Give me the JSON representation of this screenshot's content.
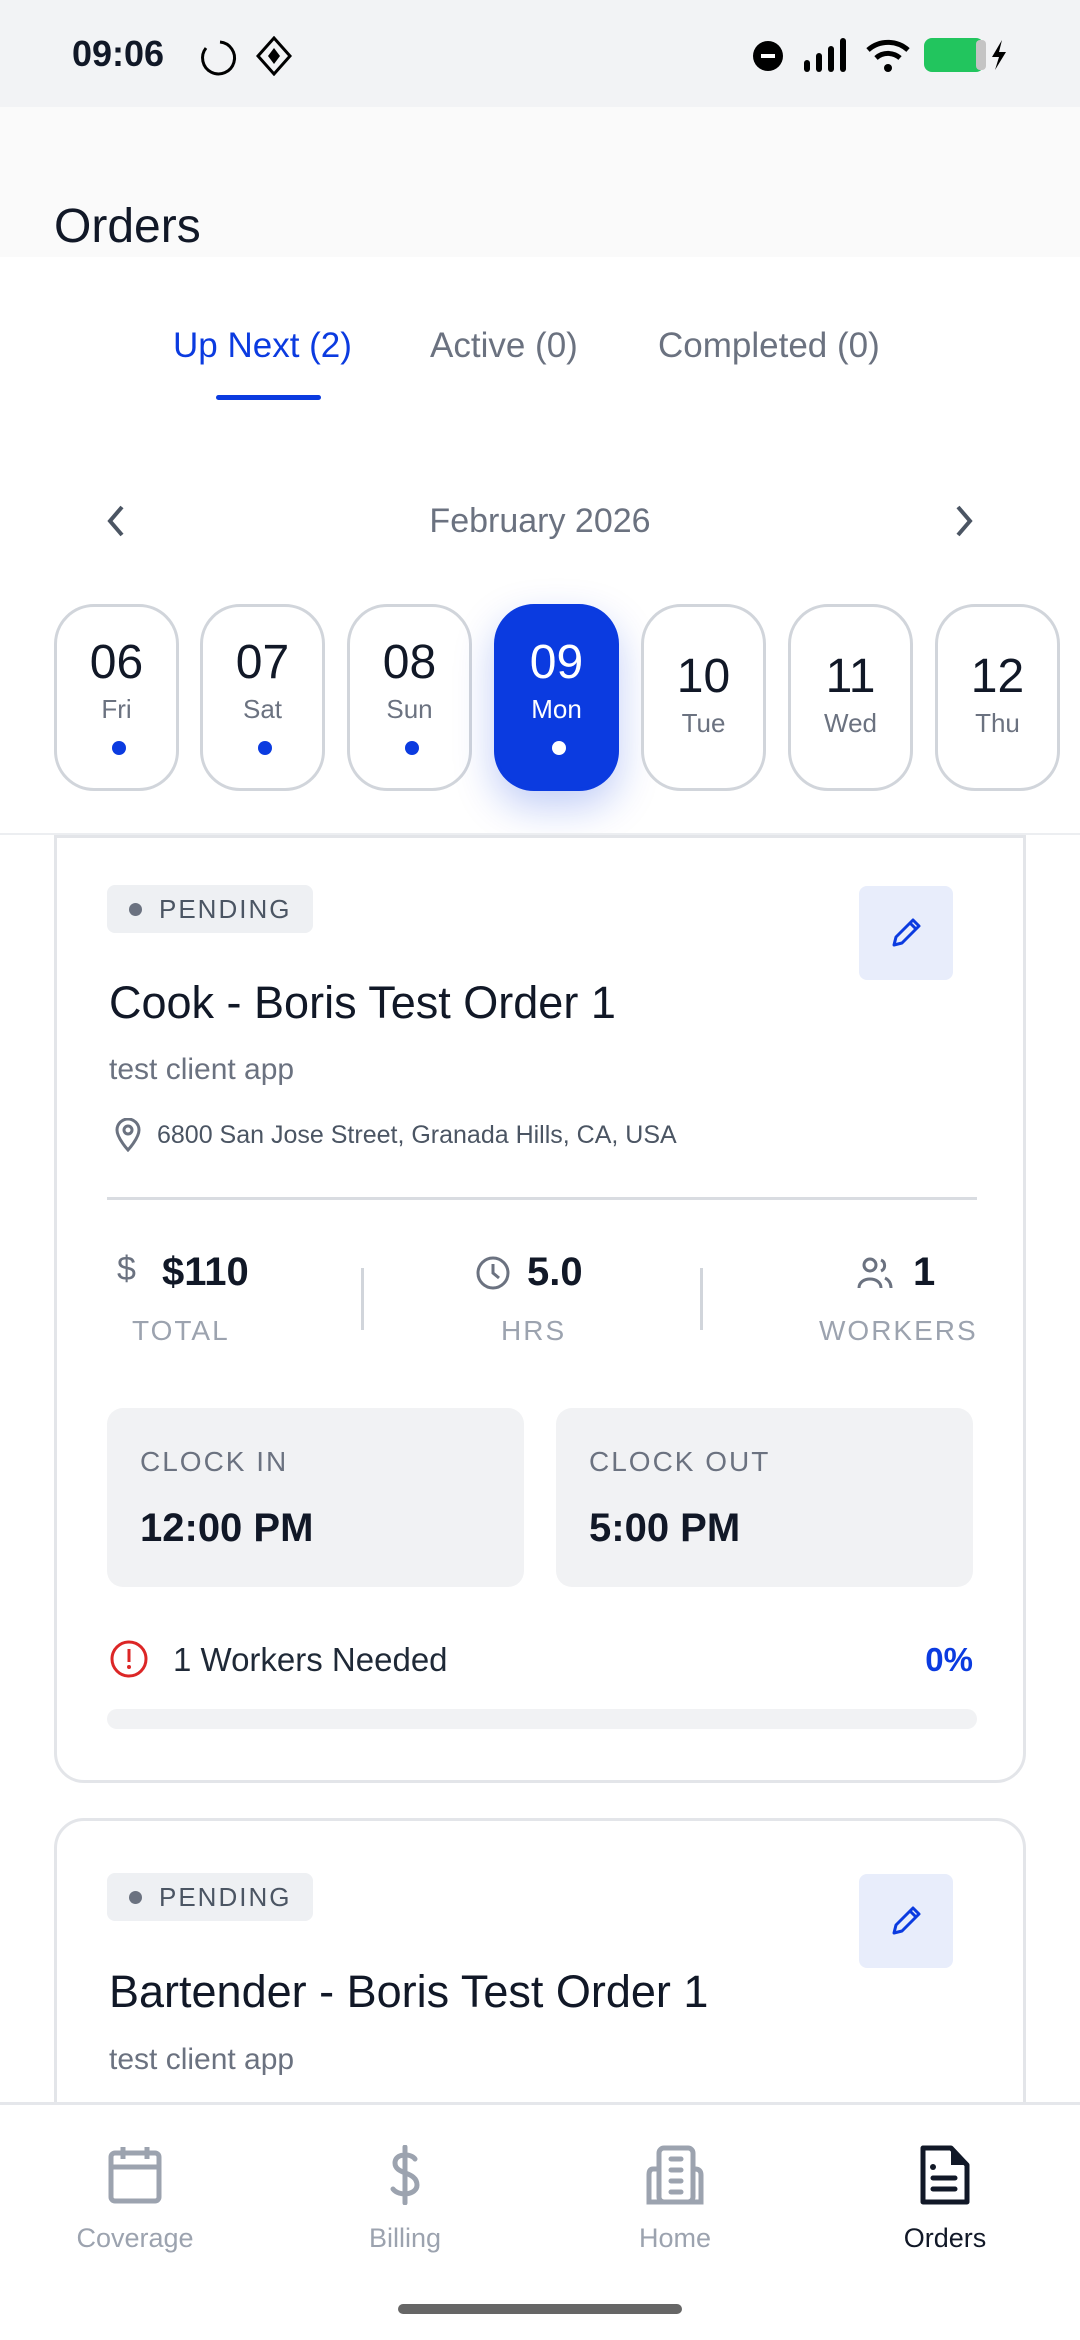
{
  "status_bar": {
    "time": "09:06",
    "battery_color": "#22c55e"
  },
  "header": {
    "title": "Orders"
  },
  "tabs": [
    {
      "label": "Up Next (2)",
      "active": true
    },
    {
      "label": "Active (0)"
    },
    {
      "label": "Completed (0)"
    }
  ],
  "calendar": {
    "month": "February 2026",
    "days": [
      {
        "num": "06",
        "dow": "Fri",
        "has_orders": true
      },
      {
        "num": "07",
        "dow": "Sat",
        "has_orders": true
      },
      {
        "num": "08",
        "dow": "Sun",
        "has_orders": true
      },
      {
        "num": "09",
        "dow": "Mon",
        "has_orders": true,
        "selected": true
      },
      {
        "num": "10",
        "dow": "Tue"
      },
      {
        "num": "11",
        "dow": "Wed"
      },
      {
        "num": "12",
        "dow": "Thu"
      }
    ]
  },
  "orders": [
    {
      "status": "PENDING",
      "title": "Cook - Boris Test Order 1",
      "client": "test client app",
      "address": "6800 San Jose Street, Granada Hills, CA, USA",
      "total": "$110",
      "total_label": "TOTAL",
      "hours": "5.0",
      "hours_label": "HRS",
      "workers": "1",
      "workers_label": "WORKERS",
      "clock_in_label": "CLOCK IN",
      "clock_in": "12:00 PM",
      "clock_out_label": "CLOCK OUT",
      "clock_out": "5:00 PM",
      "needed": "1 Workers Needed",
      "progress": "0%",
      "progress_value": 0
    },
    {
      "status": "PENDING",
      "title": "Bartender - Boris Test Order 1",
      "client": "test client app"
    }
  ],
  "colors": {
    "accent": "#0b3be0",
    "alert": "#dc2626"
  },
  "bottom_nav": [
    {
      "label": "Coverage",
      "icon": "calendar-icon"
    },
    {
      "label": "Billing",
      "icon": "dollar-icon"
    },
    {
      "label": "Home",
      "icon": "building-icon"
    },
    {
      "label": "Orders",
      "icon": "document-icon",
      "active": true
    }
  ]
}
